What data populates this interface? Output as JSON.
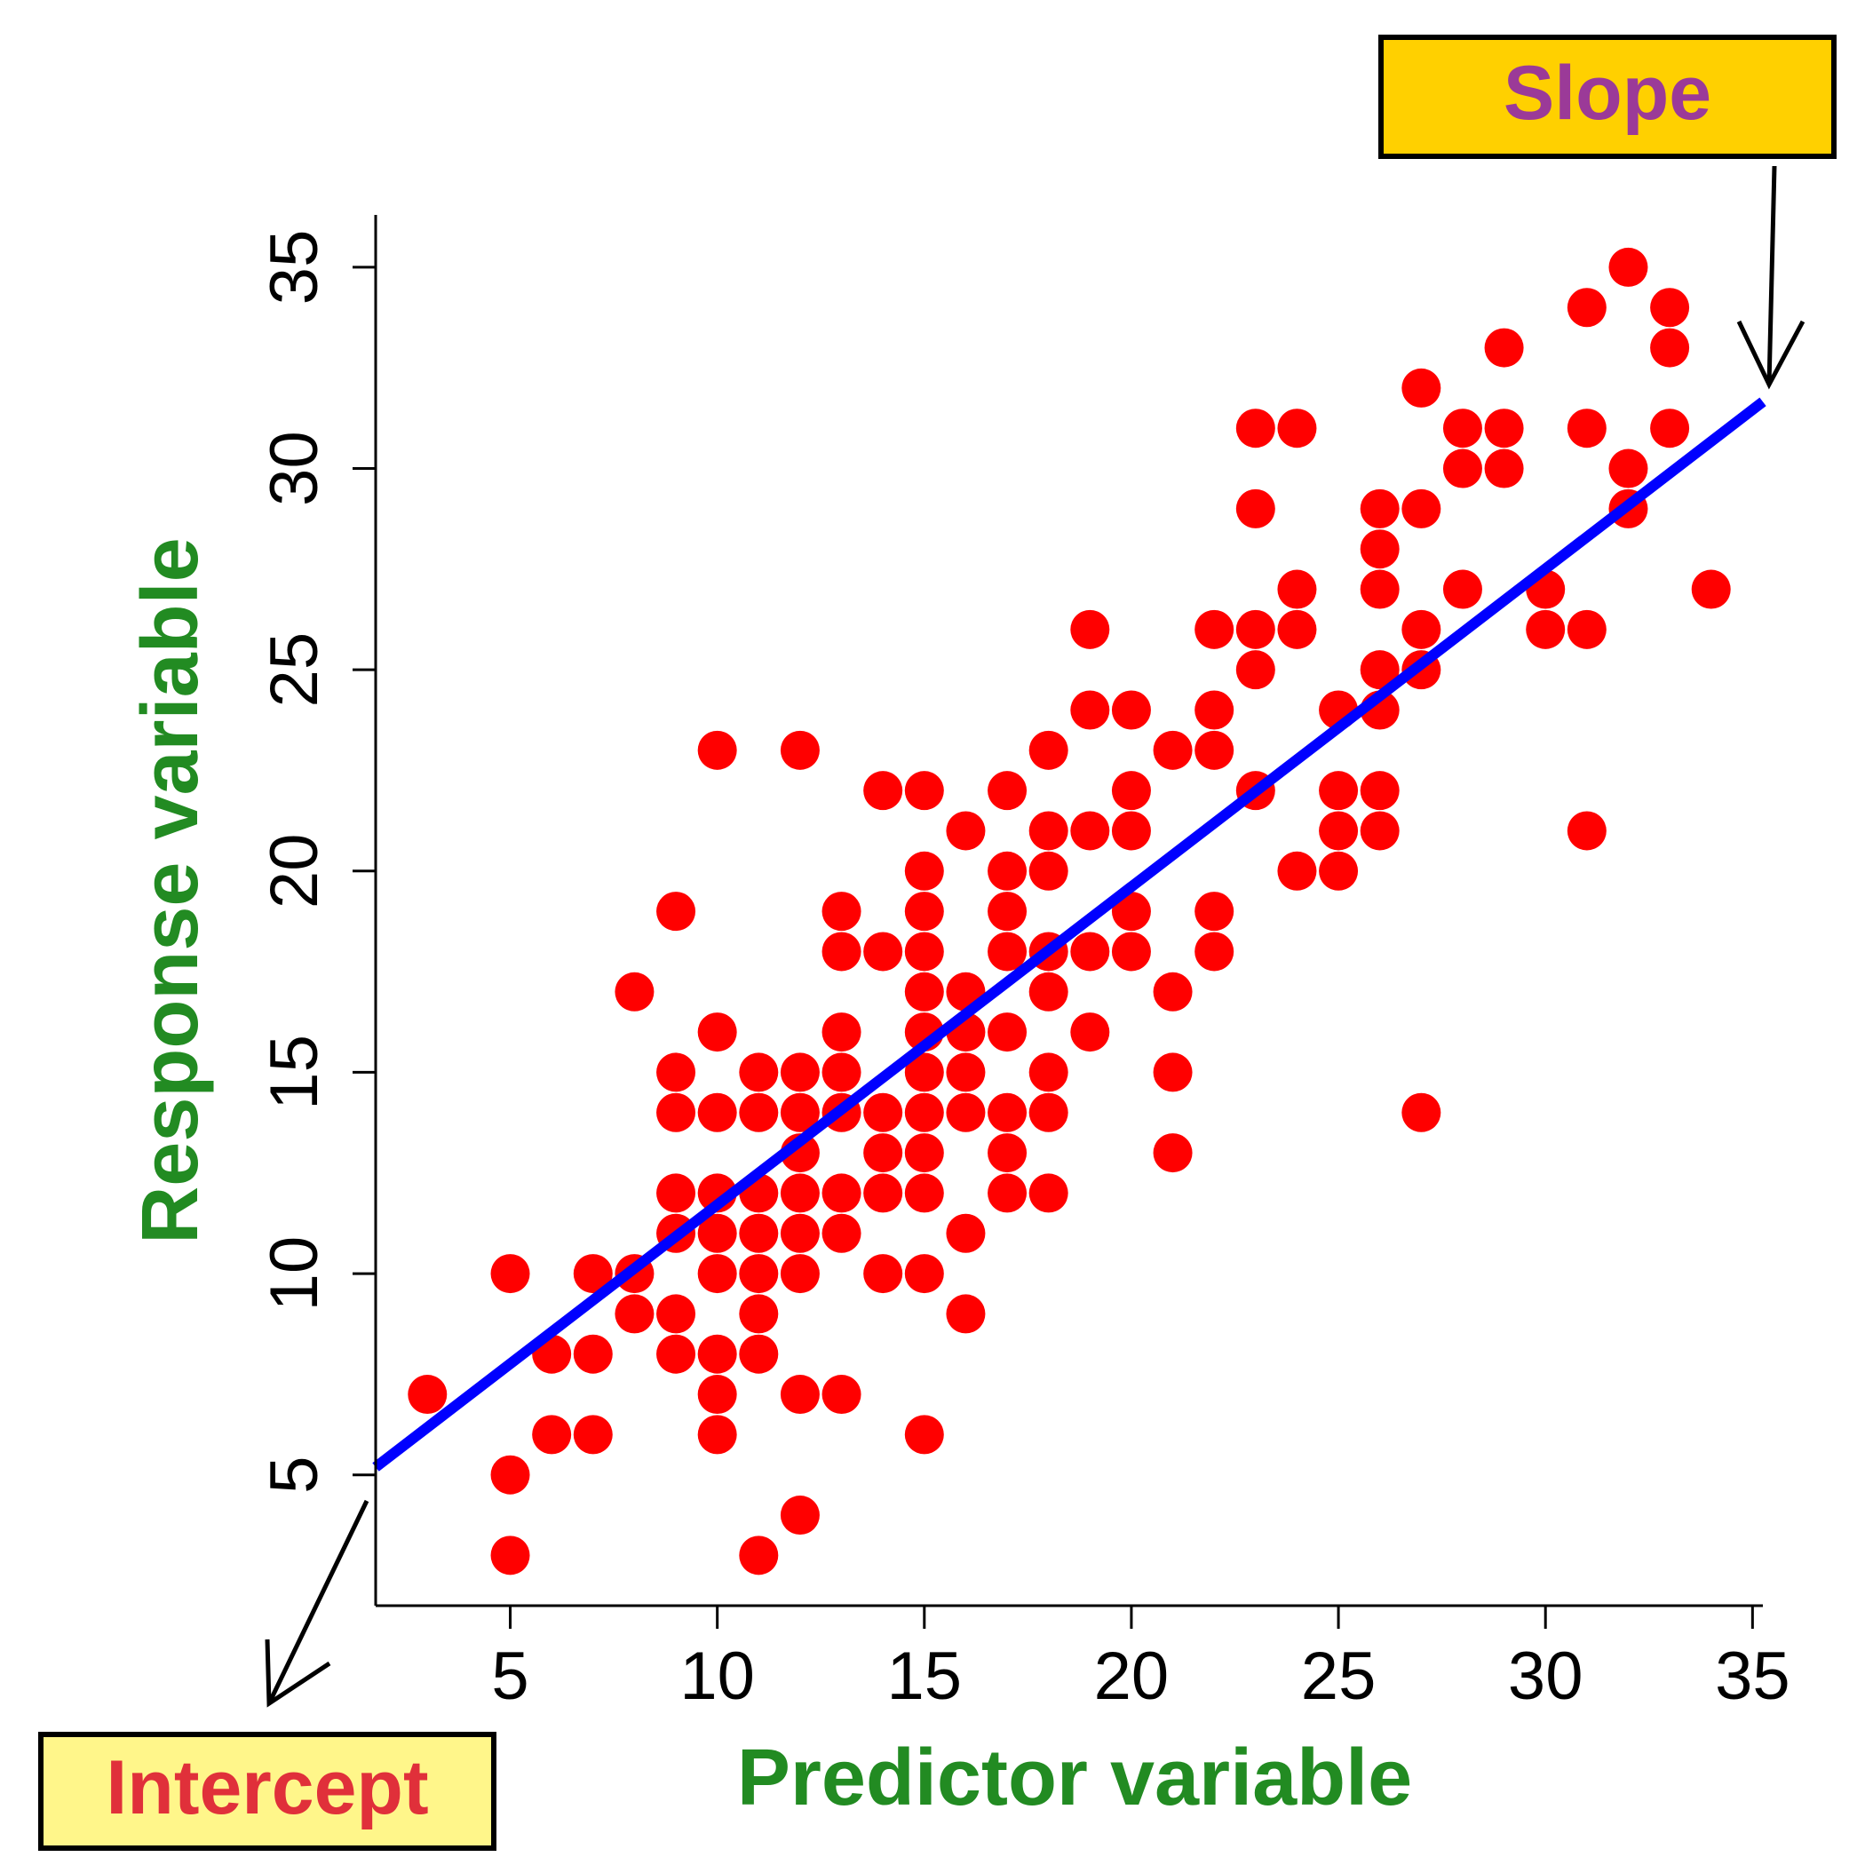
{
  "chart_data": {
    "type": "scatter",
    "xlabel": "Predictor variable",
    "ylabel": "Response variable",
    "x_ticks": [
      5,
      10,
      15,
      20,
      25,
      30,
      35
    ],
    "y_ticks": [
      5,
      10,
      15,
      20,
      25,
      30,
      35
    ],
    "xlim": [
      1.75,
      35.25
    ],
    "ylim": [
      1.75,
      36.3
    ],
    "grid": false,
    "colors": {
      "points": "#ff0000",
      "fit_line": "#0000ff",
      "axis_titles": "#228b22",
      "slope_box_fill": "#ffd000",
      "slope_text": "#9b3a98",
      "intercept_box_fill": "#fff68a",
      "intercept_text": "#e0303a",
      "arrows": "#000000"
    },
    "fit_line": {
      "intercept": 3.81,
      "slope": 0.79,
      "x_range": [
        1.75,
        35.25
      ]
    },
    "annotations": {
      "slope": {
        "text": "Slope",
        "arrow_target": "fit-line-end"
      },
      "intercept": {
        "text": "Intercept",
        "arrow_target": "fit-line-start"
      }
    },
    "points": [
      [
        3,
        7
      ],
      [
        5,
        10
      ],
      [
        5,
        5
      ],
      [
        5,
        3
      ],
      [
        6,
        8
      ],
      [
        6,
        6
      ],
      [
        7,
        10
      ],
      [
        7,
        8
      ],
      [
        7,
        6
      ],
      [
        8,
        10
      ],
      [
        8,
        9
      ],
      [
        8,
        17
      ],
      [
        9,
        19
      ],
      [
        9,
        15
      ],
      [
        9,
        14
      ],
      [
        9,
        12
      ],
      [
        9,
        11
      ],
      [
        9,
        9
      ],
      [
        9,
        8
      ],
      [
        10,
        23
      ],
      [
        10,
        16
      ],
      [
        10,
        14
      ],
      [
        10,
        12
      ],
      [
        10,
        11
      ],
      [
        10,
        10
      ],
      [
        10,
        8
      ],
      [
        10,
        7
      ],
      [
        10,
        6
      ],
      [
        11,
        15
      ],
      [
        11,
        14
      ],
      [
        11,
        12
      ],
      [
        11,
        11
      ],
      [
        11,
        10
      ],
      [
        11,
        9
      ],
      [
        11,
        8
      ],
      [
        11,
        3
      ],
      [
        12,
        23
      ],
      [
        12,
        15
      ],
      [
        12,
        14
      ],
      [
        12,
        13
      ],
      [
        12,
        12
      ],
      [
        12,
        11
      ],
      [
        12,
        10
      ],
      [
        12,
        7
      ],
      [
        12,
        4
      ],
      [
        13,
        19
      ],
      [
        13,
        18
      ],
      [
        13,
        16
      ],
      [
        13,
        15
      ],
      [
        13,
        14
      ],
      [
        13,
        12
      ],
      [
        13,
        11
      ],
      [
        13,
        7
      ],
      [
        14,
        22
      ],
      [
        14,
        18
      ],
      [
        14,
        14
      ],
      [
        14,
        13
      ],
      [
        14,
        12
      ],
      [
        14,
        10
      ],
      [
        15,
        22
      ],
      [
        15,
        20
      ],
      [
        15,
        19
      ],
      [
        15,
        18
      ],
      [
        15,
        17
      ],
      [
        15,
        16
      ],
      [
        15,
        15
      ],
      [
        15,
        14
      ],
      [
        15,
        13
      ],
      [
        15,
        12
      ],
      [
        15,
        10
      ],
      [
        15,
        6
      ],
      [
        16,
        21
      ],
      [
        16,
        17
      ],
      [
        16,
        16
      ],
      [
        16,
        15
      ],
      [
        16,
        14
      ],
      [
        16,
        11
      ],
      [
        16,
        9
      ],
      [
        17,
        22
      ],
      [
        17,
        20
      ],
      [
        17,
        19
      ],
      [
        17,
        18
      ],
      [
        17,
        16
      ],
      [
        17,
        14
      ],
      [
        17,
        13
      ],
      [
        17,
        12
      ],
      [
        18,
        23
      ],
      [
        18,
        21
      ],
      [
        18,
        20
      ],
      [
        18,
        18
      ],
      [
        18,
        17
      ],
      [
        18,
        15
      ],
      [
        18,
        14
      ],
      [
        18,
        12
      ],
      [
        19,
        26
      ],
      [
        19,
        24
      ],
      [
        19,
        21
      ],
      [
        19,
        18
      ],
      [
        19,
        16
      ],
      [
        20,
        24
      ],
      [
        20,
        22
      ],
      [
        20,
        21
      ],
      [
        20,
        19
      ],
      [
        20,
        18
      ],
      [
        21,
        23
      ],
      [
        21,
        17
      ],
      [
        21,
        15
      ],
      [
        21,
        13
      ],
      [
        22,
        26
      ],
      [
        22,
        24
      ],
      [
        22,
        23
      ],
      [
        22,
        19
      ],
      [
        22,
        18
      ],
      [
        23,
        31
      ],
      [
        23,
        29
      ],
      [
        23,
        26
      ],
      [
        23,
        25
      ],
      [
        23,
        22
      ],
      [
        24,
        31
      ],
      [
        24,
        27
      ],
      [
        24,
        26
      ],
      [
        24,
        20
      ],
      [
        25,
        24
      ],
      [
        25,
        22
      ],
      [
        25,
        21
      ],
      [
        25,
        20
      ],
      [
        26,
        29
      ],
      [
        26,
        28
      ],
      [
        26,
        27
      ],
      [
        26,
        25
      ],
      [
        26,
        24
      ],
      [
        26,
        22
      ],
      [
        26,
        21
      ],
      [
        27,
        32
      ],
      [
        27,
        29
      ],
      [
        27,
        26
      ],
      [
        27,
        25
      ],
      [
        27,
        14
      ],
      [
        28,
        31
      ],
      [
        28,
        30
      ],
      [
        28,
        27
      ],
      [
        29,
        33
      ],
      [
        29,
        31
      ],
      [
        29,
        30
      ],
      [
        30,
        27
      ],
      [
        30,
        26
      ],
      [
        31,
        34
      ],
      [
        31,
        31
      ],
      [
        31,
        26
      ],
      [
        31,
        21
      ],
      [
        32,
        35
      ],
      [
        32,
        30
      ],
      [
        32,
        29
      ],
      [
        33,
        34
      ],
      [
        33,
        33
      ],
      [
        33,
        31
      ],
      [
        34,
        27
      ]
    ]
  }
}
